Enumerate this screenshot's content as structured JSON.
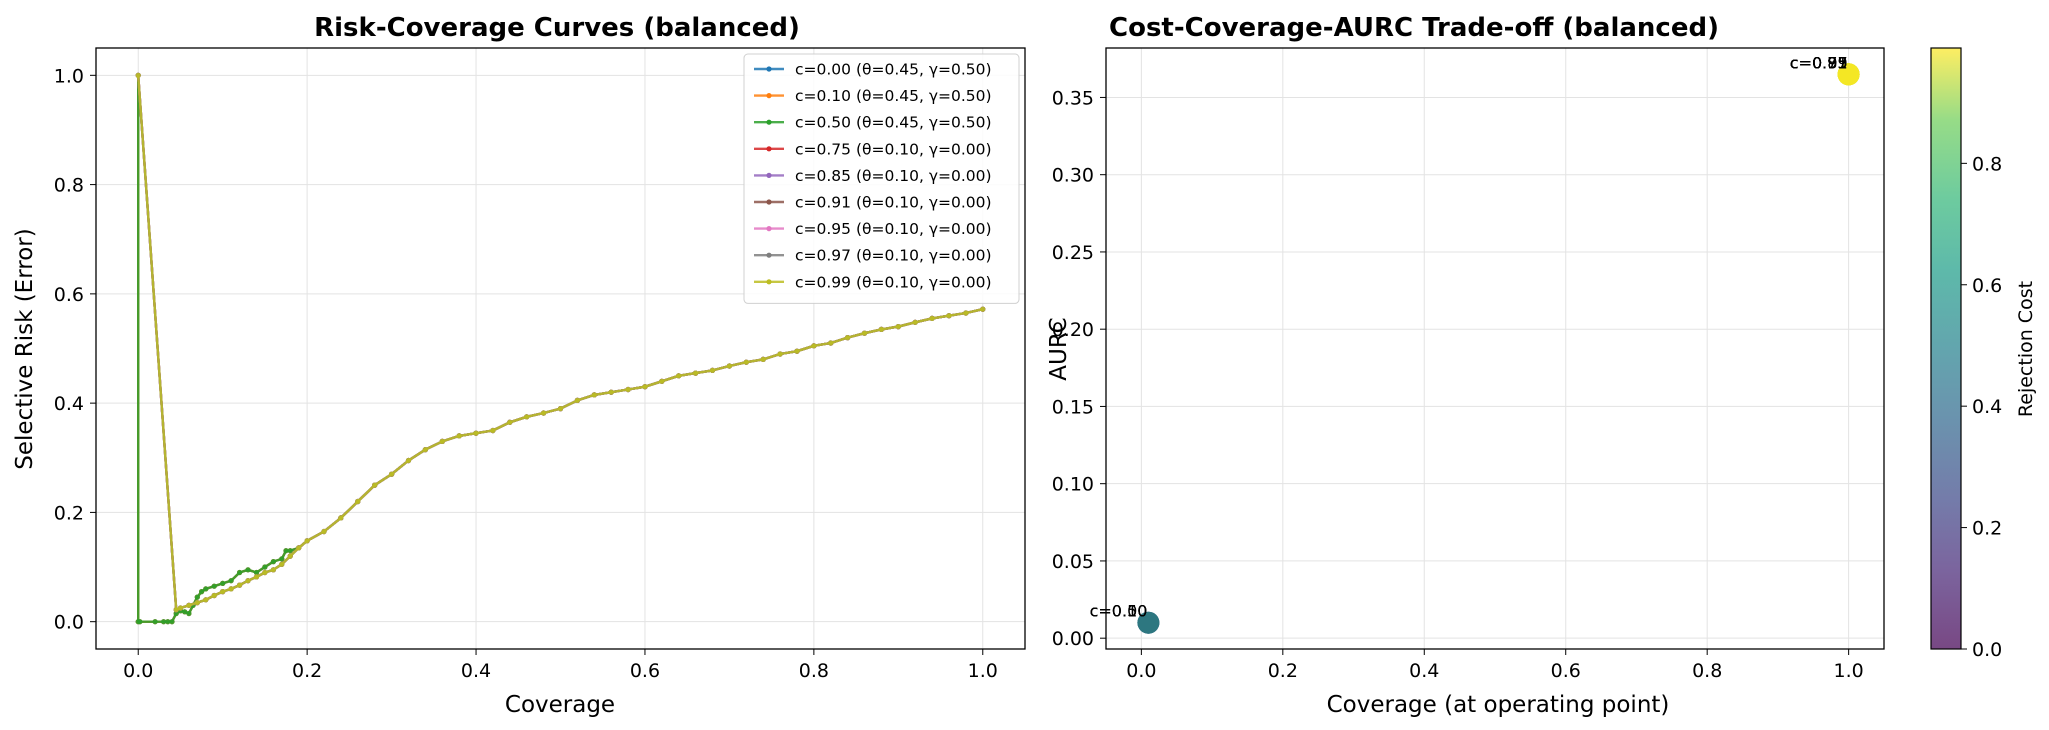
{
  "chart_data": [
    {
      "type": "line",
      "title": "Risk-Coverage Curves (balanced)",
      "xlabel": "Coverage",
      "ylabel": "Selective Risk (Error)",
      "xlim": [
        -0.05,
        1.05
      ],
      "ylim": [
        -0.05,
        1.05
      ],
      "xticks": [
        0.0,
        0.2,
        0.4,
        0.6,
        0.8,
        1.0
      ],
      "xtick_labels": [
        "0.0",
        "0.2",
        "0.4",
        "0.6",
        "0.8",
        "1.0"
      ],
      "yticks": [
        0.0,
        0.2,
        0.4,
        0.6,
        0.8,
        1.0
      ],
      "ytick_labels": [
        "0.0",
        "0.2",
        "0.4",
        "0.6",
        "0.8",
        "1.0"
      ],
      "grid": true,
      "legend_position": "top-right",
      "series": [
        {
          "name": "c=0.00 (θ=0.45, γ=0.50)",
          "color": "#1f77b4",
          "curve": "B"
        },
        {
          "name": "c=0.10 (θ=0.45, γ=0.50)",
          "color": "#ff7f0e",
          "curve": "B"
        },
        {
          "name": "c=0.50 (θ=0.45, γ=0.50)",
          "color": "#2ca02c",
          "curve": "B"
        },
        {
          "name": "c=0.75 (θ=0.10, γ=0.00)",
          "color": "#d62728",
          "curve": "A"
        },
        {
          "name": "c=0.85 (θ=0.10, γ=0.00)",
          "color": "#9467bd",
          "curve": "A"
        },
        {
          "name": "c=0.91 (θ=0.10, γ=0.00)",
          "color": "#8c564b",
          "curve": "A"
        },
        {
          "name": "c=0.95 (θ=0.10, γ=0.00)",
          "color": "#e377c2",
          "curve": "A"
        },
        {
          "name": "c=0.97 (θ=0.10, γ=0.00)",
          "color": "#7f7f7f",
          "curve": "A"
        },
        {
          "name": "c=0.99 (θ=0.10, γ=0.00)",
          "color": "#bcbd22",
          "curve": "A"
        }
      ],
      "curves": {
        "A": {
          "x": [
            0.0,
            0.045,
            0.05,
            0.06,
            0.07,
            0.08,
            0.09,
            0.1,
            0.11,
            0.12,
            0.13,
            0.14,
            0.15,
            0.16,
            0.17,
            0.18,
            0.19,
            0.2,
            0.22,
            0.24,
            0.26,
            0.28,
            0.3,
            0.32,
            0.34,
            0.36,
            0.38,
            0.4,
            0.42,
            0.44,
            0.46,
            0.48,
            0.5,
            0.52,
            0.54,
            0.56,
            0.58,
            0.6,
            0.62,
            0.64,
            0.66,
            0.68,
            0.7,
            0.72,
            0.74,
            0.76,
            0.78,
            0.8,
            0.82,
            0.84,
            0.86,
            0.88,
            0.9,
            0.92,
            0.94,
            0.96,
            0.98,
            1.0
          ],
          "y": [
            1.0,
            0.022,
            0.025,
            0.03,
            0.035,
            0.04,
            0.048,
            0.055,
            0.06,
            0.067,
            0.075,
            0.082,
            0.09,
            0.095,
            0.105,
            0.12,
            0.135,
            0.148,
            0.165,
            0.19,
            0.22,
            0.25,
            0.27,
            0.295,
            0.315,
            0.33,
            0.34,
            0.345,
            0.35,
            0.365,
            0.375,
            0.382,
            0.39,
            0.405,
            0.415,
            0.42,
            0.425,
            0.43,
            0.44,
            0.45,
            0.455,
            0.46,
            0.468,
            0.475,
            0.48,
            0.49,
            0.495,
            0.505,
            0.51,
            0.52,
            0.528,
            0.535,
            0.54,
            0.548,
            0.555,
            0.56,
            0.565,
            0.572
          ]
        },
        "B": {
          "x": [
            0.0,
            0.0,
            0.002,
            0.02,
            0.03,
            0.035,
            0.04,
            0.045,
            0.05,
            0.055,
            0.06,
            0.065,
            0.07,
            0.075,
            0.08,
            0.09,
            0.1,
            0.11,
            0.12,
            0.13,
            0.14,
            0.15,
            0.16,
            0.17,
            0.175,
            0.18,
            0.19,
            0.2,
            0.22,
            0.24,
            0.26,
            0.28,
            0.3,
            0.32,
            0.34,
            0.36,
            0.38,
            0.4,
            0.42,
            0.44,
            0.46,
            0.48,
            0.5,
            0.52,
            0.54,
            0.56,
            0.58,
            0.6,
            0.62,
            0.64,
            0.66,
            0.68,
            0.7,
            0.72,
            0.74,
            0.76,
            0.78,
            0.8,
            0.82,
            0.84,
            0.86,
            0.88,
            0.9,
            0.92,
            0.94,
            0.96,
            0.98,
            1.0
          ],
          "y": [
            1.0,
            0.0,
            0.0,
            0.0,
            0.0,
            0.0,
            0.0,
            0.015,
            0.02,
            0.018,
            0.015,
            0.03,
            0.045,
            0.055,
            0.06,
            0.065,
            0.07,
            0.075,
            0.09,
            0.095,
            0.09,
            0.1,
            0.11,
            0.115,
            0.13,
            0.13,
            0.135,
            0.148,
            0.165,
            0.19,
            0.22,
            0.25,
            0.27,
            0.295,
            0.315,
            0.33,
            0.34,
            0.345,
            0.35,
            0.365,
            0.375,
            0.382,
            0.39,
            0.405,
            0.415,
            0.42,
            0.425,
            0.43,
            0.44,
            0.45,
            0.455,
            0.46,
            0.468,
            0.475,
            0.48,
            0.49,
            0.495,
            0.505,
            0.51,
            0.52,
            0.528,
            0.535,
            0.54,
            0.548,
            0.555,
            0.56,
            0.565,
            0.572
          ]
        }
      }
    },
    {
      "type": "scatter",
      "title": "Cost-Coverage-AURC Trade-off (balanced)",
      "xlabel": "Coverage (at operating point)",
      "ylabel": "AURC",
      "xlim": [
        -0.05,
        1.05
      ],
      "ylim": [
        -0.007,
        0.382
      ],
      "xticks": [
        0.0,
        0.2,
        0.4,
        0.6,
        0.8,
        1.0
      ],
      "xtick_labels": [
        "0.0",
        "0.2",
        "0.4",
        "0.6",
        "0.8",
        "1.0"
      ],
      "yticks": [
        0.0,
        0.05,
        0.1,
        0.15,
        0.2,
        0.25,
        0.3,
        0.35
      ],
      "ytick_labels": [
        "0.00",
        "0.05",
        "0.10",
        "0.15",
        "0.20",
        "0.25",
        "0.30",
        "0.35"
      ],
      "grid": true,
      "colorbar": {
        "label": "Rejection Cost",
        "range": [
          0.0,
          0.99
        ],
        "ticks": [
          0.0,
          0.2,
          0.4,
          0.6,
          0.8
        ],
        "tick_labels": [
          "0.0",
          "0.2",
          "0.4",
          "0.6",
          "0.8"
        ],
        "colormap": "viridis"
      },
      "points": [
        {
          "x": 0.01,
          "y": 0.01,
          "c": 0.0,
          "color": "#3b528b",
          "label": "c=0.00"
        },
        {
          "x": 0.01,
          "y": 0.01,
          "c": 0.1,
          "color": "#31688e",
          "label": "c=0.10"
        },
        {
          "x": 0.01,
          "y": 0.01,
          "c": 0.5,
          "color": "#2b7a7e",
          "label": "c=0.50"
        },
        {
          "x": 1.0,
          "y": 0.365,
          "c": 0.75,
          "color": "#9ed93a",
          "label": "c=0.75"
        },
        {
          "x": 1.0,
          "y": 0.365,
          "c": 0.85,
          "color": "#c7e020",
          "label": "c=0.85"
        },
        {
          "x": 1.0,
          "y": 0.365,
          "c": 0.91,
          "color": "#dde318",
          "label": "c=0.91"
        },
        {
          "x": 1.0,
          "y": 0.365,
          "c": 0.95,
          "color": "#eae51a",
          "label": "c=0.95"
        },
        {
          "x": 1.0,
          "y": 0.365,
          "c": 0.97,
          "color": "#f0e51f",
          "label": "c=0.97"
        },
        {
          "x": 1.0,
          "y": 0.365,
          "c": 0.99,
          "color": "#f5e726",
          "label": "c=0.99"
        }
      ]
    }
  ]
}
